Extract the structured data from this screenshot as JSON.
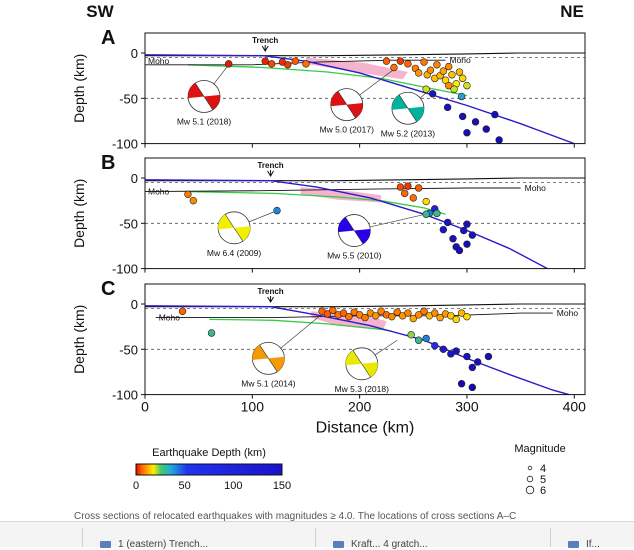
{
  "page": {
    "caption": "Cross sections of relocated earthquakes with magnitudes ≥ 4.0. The locations of cross sections A–C",
    "bottom_tabs": [
      "",
      "1 (eastern) Trench...",
      "Kraft... 4 gratch...",
      "If..."
    ]
  },
  "chart_data": {
    "type": "scatter",
    "figure_type": "earthquake-cross-sections",
    "header_labels": {
      "left": "SW",
      "right": "NE"
    },
    "xlabel": "Distance (km)",
    "ylabel": "Depth (km)",
    "xlim": [
      0,
      410
    ],
    "ylim": [
      -100,
      5
    ],
    "xticks": [
      0,
      100,
      200,
      300,
      400
    ],
    "yticks": [
      0,
      -50,
      -100
    ],
    "reference_lines": [
      -5,
      -50
    ],
    "panels": [
      {
        "label": "A",
        "trench_label": "Trench",
        "trench_x": 112,
        "moho_label": "Moho",
        "moho_label2": "Moho",
        "surface": [
          [
            0,
            -3
          ],
          [
            170,
            -3
          ],
          [
            240,
            -2
          ],
          [
            300,
            -1
          ],
          [
            350,
            0
          ],
          [
            410,
            0
          ]
        ],
        "moho": [
          [
            0,
            -13
          ],
          [
            100,
            -13
          ],
          [
            160,
            -10
          ],
          [
            230,
            -8
          ],
          [
            280,
            -8
          ]
        ],
        "green_line": [
          [
            40,
            -13
          ],
          [
            110,
            -16
          ],
          [
            170,
            -21
          ],
          [
            220,
            -28
          ],
          [
            270,
            -40
          ],
          [
            300,
            -47
          ]
        ],
        "slab": [
          [
            0,
            -2
          ],
          [
            110,
            -3
          ],
          [
            150,
            -9
          ],
          [
            200,
            -22
          ],
          [
            250,
            -40
          ],
          [
            300,
            -58
          ],
          [
            350,
            -78
          ],
          [
            400,
            -100
          ]
        ],
        "pink_band": [
          [
            150,
            -5
          ],
          [
            205,
            -11
          ],
          [
            245,
            -21
          ],
          [
            240,
            -29
          ],
          [
            195,
            -21
          ],
          [
            150,
            -12
          ]
        ],
        "mechanisms": [
          {
            "label": "Mw 5.1 (2018)",
            "cx": 55,
            "cy": -48,
            "dark": "#dd1111",
            "event_x": 78,
            "event_y": -13
          },
          {
            "label": "Mw 5.0 (2017)",
            "cx": 188,
            "cy": -57,
            "dark": "#dd1111",
            "event_x": 232,
            "event_y": -18
          },
          {
            "label": "Mw 5.2 (2013)",
            "cx": 245,
            "cy": -61,
            "dark": "#00b39a",
            "event_x": 266,
            "event_y": -40
          }
        ],
        "events": [
          [
            78,
            -12,
            3
          ],
          [
            112,
            -9,
            4
          ],
          [
            118,
            -12,
            8
          ],
          [
            128,
            -10,
            5
          ],
          [
            133,
            -13,
            6
          ],
          [
            140,
            -9,
            10
          ],
          [
            150,
            -12,
            14
          ],
          [
            225,
            -9,
            10
          ],
          [
            232,
            -16,
            14
          ],
          [
            238,
            -9,
            6
          ],
          [
            245,
            -12,
            12
          ],
          [
            252,
            -17,
            18
          ],
          [
            255,
            -22,
            22
          ],
          [
            260,
            -10,
            16
          ],
          [
            263,
            -24,
            25
          ],
          [
            266,
            -19,
            20
          ],
          [
            270,
            -28,
            27
          ],
          [
            272,
            -13,
            18
          ],
          [
            275,
            -25,
            26
          ],
          [
            278,
            -20,
            24
          ],
          [
            280,
            -30,
            30
          ],
          [
            283,
            -15,
            20
          ],
          [
            286,
            -24,
            27
          ],
          [
            290,
            -34,
            32
          ],
          [
            293,
            -21,
            26
          ],
          [
            296,
            -28,
            30
          ],
          [
            300,
            -36,
            35
          ],
          [
            268,
            -45,
            120
          ],
          [
            282,
            -60,
            128
          ],
          [
            296,
            -70,
            135
          ],
          [
            300,
            -88,
            140
          ],
          [
            308,
            -76,
            138
          ],
          [
            318,
            -84,
            142
          ],
          [
            326,
            -68,
            138
          ],
          [
            330,
            -96,
            145
          ],
          [
            283,
            -36,
            20
          ],
          [
            288,
            -40,
            35
          ],
          [
            295,
            -48,
            50
          ],
          [
            262,
            -40,
            35
          ]
        ]
      },
      {
        "label": "B",
        "trench_label": "Trench",
        "trench_x": 117,
        "moho_label": "Moho",
        "moho_label2": "Moho",
        "surface": [
          [
            0,
            -3
          ],
          [
            180,
            -3
          ],
          [
            240,
            -2
          ],
          [
            300,
            -1
          ],
          [
            350,
            0
          ],
          [
            410,
            0
          ]
        ],
        "moho": [
          [
            0,
            -15
          ],
          [
            110,
            -14
          ],
          [
            220,
            -12
          ],
          [
            300,
            -11
          ],
          [
            350,
            -11
          ]
        ],
        "green_line": [
          [
            40,
            -15
          ],
          [
            120,
            -17
          ],
          [
            180,
            -21
          ],
          [
            220,
            -25
          ],
          [
            260,
            -33
          ],
          [
            280,
            -40
          ]
        ],
        "slab": [
          [
            0,
            -2
          ],
          [
            117,
            -3
          ],
          [
            160,
            -10
          ],
          [
            210,
            -22
          ],
          [
            260,
            -40
          ],
          [
            300,
            -58
          ],
          [
            340,
            -78
          ],
          [
            375,
            -100
          ]
        ],
        "pink_band": [
          [
            145,
            -10
          ],
          [
            195,
            -15
          ],
          [
            220,
            -19
          ],
          [
            220,
            -27
          ],
          [
            180,
            -24
          ],
          [
            145,
            -18
          ]
        ],
        "mechanisms": [
          {
            "label": "Mw 6.4 (2009)",
            "cx": 83,
            "cy": -55,
            "dark": "#f0f000",
            "event_x": 123,
            "event_y": -36
          },
          {
            "label": "Mw 5.5 (2010)",
            "cx": 195,
            "cy": -58,
            "dark": "#2a00e8",
            "event_x": 265,
            "event_y": -39
          }
        ],
        "events": [
          [
            40,
            -18,
            16
          ],
          [
            45,
            -25,
            20
          ],
          [
            123,
            -36,
            55
          ],
          [
            238,
            -10,
            8
          ],
          [
            242,
            -17,
            12
          ],
          [
            245,
            -9,
            6
          ],
          [
            250,
            -22,
            14
          ],
          [
            255,
            -11,
            10
          ],
          [
            262,
            -26,
            30
          ],
          [
            265,
            -39,
            55
          ],
          [
            270,
            -34,
            90
          ],
          [
            272,
            -39,
            45
          ],
          [
            262,
            -40,
            45
          ],
          [
            278,
            -57,
            120
          ],
          [
            282,
            -49,
            128
          ],
          [
            287,
            -67,
            132
          ],
          [
            290,
            -76,
            136
          ],
          [
            297,
            -58,
            126
          ],
          [
            300,
            -51,
            130
          ],
          [
            305,
            -63,
            128
          ],
          [
            300,
            -73,
            140
          ],
          [
            293,
            -80,
            143
          ]
        ]
      },
      {
        "label": "C",
        "trench_label": "Trench",
        "trench_x": 117,
        "moho_label": "Moho",
        "moho_label2": "Moho",
        "surface": [
          [
            0,
            -3
          ],
          [
            180,
            -3
          ],
          [
            250,
            -2
          ],
          [
            300,
            -1
          ],
          [
            350,
            0
          ],
          [
            410,
            0
          ]
        ],
        "moho": [
          [
            10,
            -15
          ],
          [
            120,
            -15
          ],
          [
            200,
            -13
          ],
          [
            280,
            -13
          ],
          [
            350,
            -10
          ],
          [
            380,
            -10
          ]
        ],
        "green_line": [
          [
            60,
            -17
          ],
          [
            120,
            -18
          ],
          [
            170,
            -22
          ],
          [
            220,
            -28
          ],
          [
            230,
            -30
          ]
        ],
        "slab": [
          [
            0,
            -2
          ],
          [
            117,
            -3
          ],
          [
            160,
            -12
          ],
          [
            210,
            -24
          ],
          [
            260,
            -40
          ],
          [
            300,
            -60
          ],
          [
            340,
            -78
          ],
          [
            380,
            -95
          ],
          [
            395,
            -100
          ]
        ],
        "pink_band": [
          [
            155,
            -8
          ],
          [
            210,
            -14
          ],
          [
            225,
            -19
          ],
          [
            222,
            -29
          ],
          [
            180,
            -24
          ],
          [
            155,
            -15
          ]
        ],
        "mechanisms": [
          {
            "label": "Mw 5.1 (2014)",
            "cx": 115,
            "cy": -60,
            "dark": "#f59a00",
            "event_x": 163,
            "event_y": -13
          },
          {
            "label": "Mw 5.3 (2018)",
            "cx": 202,
            "cy": -66,
            "dark": "#e8e800",
            "event_x": 235,
            "event_y": -40
          }
        ],
        "events": [
          [
            35,
            -8,
            12
          ],
          [
            62,
            -32,
            45
          ],
          [
            165,
            -8,
            12
          ],
          [
            170,
            -11,
            10
          ],
          [
            175,
            -7,
            14
          ],
          [
            180,
            -12,
            15
          ],
          [
            185,
            -10,
            12
          ],
          [
            190,
            -14,
            15
          ],
          [
            195,
            -9,
            16
          ],
          [
            200,
            -12,
            18
          ],
          [
            205,
            -15,
            16
          ],
          [
            210,
            -10,
            20
          ],
          [
            215,
            -13,
            22
          ],
          [
            220,
            -8,
            18
          ],
          [
            225,
            -12,
            14
          ],
          [
            230,
            -14,
            20
          ],
          [
            235,
            -9,
            16
          ],
          [
            240,
            -13,
            22
          ],
          [
            245,
            -10,
            18
          ],
          [
            250,
            -16,
            24
          ],
          [
            255,
            -12,
            20
          ],
          [
            260,
            -8,
            16
          ],
          [
            265,
            -13,
            26
          ],
          [
            270,
            -10,
            20
          ],
          [
            275,
            -15,
            24
          ],
          [
            280,
            -11,
            22
          ],
          [
            285,
            -13,
            28
          ],
          [
            290,
            -17,
            30
          ],
          [
            295,
            -10,
            26
          ],
          [
            300,
            -14,
            30
          ],
          [
            255,
            -40,
            45
          ],
          [
            262,
            -38,
            55
          ],
          [
            248,
            -34,
            38
          ],
          [
            270,
            -46,
            70
          ],
          [
            278,
            -50,
            110
          ],
          [
            285,
            -55,
            122
          ],
          [
            290,
            -52,
            128
          ],
          [
            300,
            -58,
            132
          ],
          [
            305,
            -70,
            138
          ],
          [
            310,
            -64,
            135
          ],
          [
            295,
            -88,
            145
          ],
          [
            305,
            -92,
            148
          ],
          [
            320,
            -58,
            140
          ]
        ]
      }
    ],
    "colorbar": {
      "title": "Earthquake Depth (km)",
      "ticks": [
        "0",
        "50",
        "100",
        "150"
      ],
      "stops": [
        "#ee0000",
        "#ff6600",
        "#ffaa00",
        "#ffee00",
        "#44cc66",
        "#22aadd",
        "#2233ee",
        "#1a11cc"
      ]
    },
    "magnitude_legend": {
      "title": "Magnitude",
      "values": [
        "4",
        "5",
        "6"
      ]
    }
  }
}
